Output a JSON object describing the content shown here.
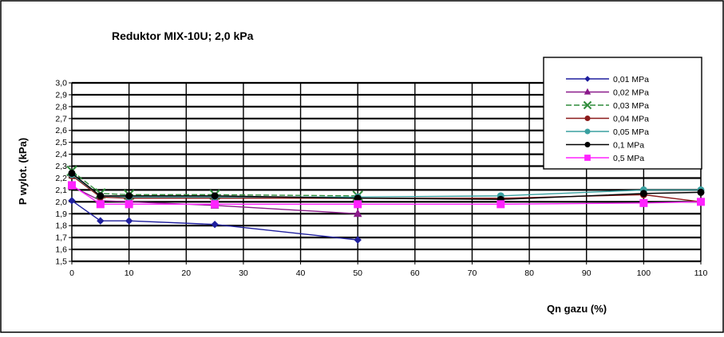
{
  "chart_data": {
    "type": "line",
    "title": "Reduktor  MIX-10U;  2,0 kPa",
    "xlabel": "Qn gazu (%)",
    "ylabel": "P wylot. (kPa)",
    "xlim": [
      0,
      110
    ],
    "ylim": [
      1.5,
      3.0
    ],
    "x_ticks": [
      "0",
      "10",
      "20",
      "30",
      "40",
      "50",
      "60",
      "70",
      "80",
      "90",
      "100",
      "110"
    ],
    "y_ticks": [
      "1,5",
      "1,6",
      "1,7",
      "1,8",
      "1,9",
      "2,0",
      "2,1",
      "2,2",
      "2,3",
      "2,4",
      "2,5",
      "2,6",
      "2,7",
      "2,8",
      "2,9",
      "3,0"
    ],
    "grid": "horizontal and vertical",
    "legend_position": "top-right",
    "series": [
      {
        "name": "0,01 MPa",
        "color": "#1f1f9e",
        "marker": "diamond",
        "x": [
          0,
          5,
          10,
          25,
          50
        ],
        "y": [
          2.01,
          1.84,
          1.84,
          1.81,
          1.68
        ]
      },
      {
        "name": "0,02 MPa",
        "color": "#8b1a8b",
        "marker": "triangle",
        "x": [
          0,
          5,
          10,
          25,
          50
        ],
        "y": [
          2.13,
          2.01,
          2.0,
          1.97,
          1.9
        ]
      },
      {
        "name": "0,03 MPa",
        "color": "#2e8b3a",
        "marker": "x",
        "x": [
          0,
          5,
          10,
          25,
          50
        ],
        "y": [
          2.26,
          2.07,
          2.06,
          2.06,
          2.05
        ]
      },
      {
        "name": "0,04 MPa",
        "color": "#8b1a1a",
        "marker": "circle",
        "x": [
          0,
          5,
          10,
          25,
          50,
          75,
          100,
          110
        ],
        "y": [
          2.22,
          2.04,
          2.03,
          2.03,
          2.03,
          2.03,
          2.06,
          2.0
        ]
      },
      {
        "name": "0,05 MPa",
        "color": "#3aa0a0",
        "marker": "circle",
        "x": [
          0,
          5,
          10,
          25,
          50,
          75,
          100,
          110
        ],
        "y": [
          2.23,
          2.05,
          2.04,
          2.04,
          2.04,
          2.05,
          2.1,
          2.1
        ]
      },
      {
        "name": "0,1 MPa",
        "color": "#000000",
        "marker": "circle",
        "x": [
          0,
          5,
          10,
          25,
          50,
          75,
          100,
          110
        ],
        "y": [
          2.24,
          2.05,
          2.05,
          2.05,
          2.03,
          2.02,
          2.07,
          2.08
        ]
      },
      {
        "name": "0,5 MPa",
        "color": "#ff22ff",
        "marker": "square",
        "x": [
          0,
          5,
          10,
          25,
          50,
          75,
          100,
          110
        ],
        "y": [
          2.14,
          1.98,
          1.98,
          1.98,
          1.98,
          1.98,
          1.99,
          2.0
        ]
      }
    ]
  }
}
